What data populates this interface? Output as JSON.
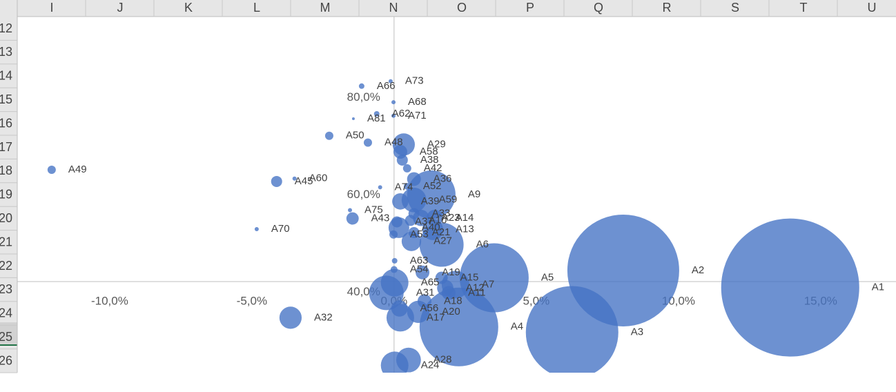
{
  "spreadsheet": {
    "columns": [
      "I",
      "J",
      "K",
      "L",
      "M",
      "N",
      "O",
      "P",
      "Q",
      "R",
      "S",
      "T",
      "U"
    ],
    "rows": [
      "12",
      "13",
      "14",
      "15",
      "16",
      "17",
      "18",
      "19",
      "20",
      "21",
      "22",
      "23",
      "24",
      "25",
      "26"
    ]
  },
  "chart_data": {
    "type": "bubble",
    "color": "#4472c4",
    "labels": [
      "A1",
      "A2",
      "A3",
      "A4",
      "A5",
      "A6",
      "A7",
      "A9",
      "A13",
      "A14",
      "A27",
      "A28",
      "A24",
      "A17",
      "A20",
      "A18",
      "A11",
      "A12",
      "A19",
      "A15",
      "A32",
      "A49",
      "A45",
      "A60",
      "A70",
      "A43",
      "A75",
      "A50",
      "A81",
      "A62",
      "A66",
      "A73",
      "A68",
      "A71",
      "A48",
      "A29",
      "A38",
      "A42",
      "A36",
      "A53",
      "A63",
      "A54",
      "A31",
      "A56",
      "A23",
      "A33",
      "A21",
      "A10",
      "A37",
      "A39",
      "A74",
      "A52",
      "A58",
      "A65",
      "A40",
      "A59"
    ],
    "x": [
      13.93,
      8.06,
      6.26,
      2.28,
      3.52,
      1.67,
      2.16,
      1.31,
      1.36,
      1.43,
      0.61,
      0.51,
      0.02,
      0.22,
      0.85,
      1.07,
      1.92,
      1.8,
      1.0,
      1.67,
      -3.64,
      -12.04,
      -4.13,
      -3.5,
      -4.83,
      -1.46,
      -1.55,
      -2.28,
      -1.43,
      -0.61,
      -1.14,
      -0.12,
      -0.02,
      -0.02,
      -0.92,
      0.34,
      0.29,
      0.46,
      0.7,
      -0.02,
      0.02,
      0.0,
      -0.27,
      0.19,
      0.95,
      0.7,
      0.7,
      0.58,
      0.1,
      0.22,
      -0.49,
      0.46,
      0.22,
      0.02,
      0.17,
      0.7
    ],
    "values": [
      41.0,
      44.5,
      31.8,
      32.9,
      43.0,
      49.8,
      41.6,
      60.1,
      52.9,
      55.3,
      50.5,
      26.1,
      25.0,
      34.8,
      36.0,
      38.2,
      39.9,
      40.9,
      44.1,
      43.0,
      34.8,
      65.2,
      62.8,
      63.4,
      53.0,
      55.2,
      56.9,
      72.2,
      75.7,
      76.7,
      82.4,
      83.4,
      79.1,
      76.3,
      70.8,
      70.4,
      67.2,
      65.5,
      63.3,
      51.9,
      46.5,
      44.7,
      39.9,
      36.7,
      55.3,
      56.2,
      52.3,
      54.8,
      54.5,
      58.7,
      61.6,
      61.8,
      68.9,
      42.0,
      53.3,
      59.0
    ],
    "sizes": [
      100,
      65.6,
      44.9,
      32.5,
      25,
      10.2,
      4,
      12.3,
      2.3,
      1.4,
      2.0,
      3.2,
      4,
      4,
      2.6,
      1,
      1,
      1.4,
      1,
      0.8,
      2.6,
      0.36,
      0.64,
      0.09,
      0.09,
      0.8,
      0.09,
      0.36,
      0.04,
      0.16,
      0.16,
      0.09,
      0.09,
      0.09,
      0.36,
      2.6,
      0.64,
      0.36,
      1,
      0.36,
      0.16,
      0.25,
      6.25,
      1.4,
      1.4,
      0.64,
      0.64,
      0.64,
      0.64,
      1.4,
      0.09,
      0.25,
      1,
      4,
      2.25,
      3.2
    ],
    "xlim": [
      -13.25,
      17.65
    ],
    "ylim": [
      23.5,
      96.7
    ],
    "xticks": [
      {
        "value": -10,
        "label": "-10,0%"
      },
      {
        "value": -5,
        "label": "-5,0%"
      },
      {
        "value": 0,
        "label": "0,0%"
      },
      {
        "value": 5,
        "label": "5,0%"
      },
      {
        "value": 10,
        "label": "10,0%"
      },
      {
        "value": 15,
        "label": "15,0%"
      }
    ],
    "yticks": [
      {
        "value": 40,
        "label": "40,0%"
      },
      {
        "value": 60,
        "label": "60,0%"
      },
      {
        "value": 80,
        "label": "80,0%"
      }
    ]
  }
}
